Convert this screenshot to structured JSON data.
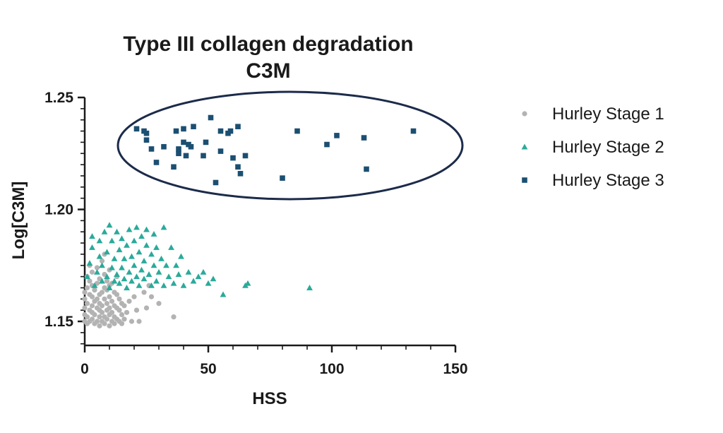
{
  "chart_data": {
    "type": "scatter",
    "title": "Type III collagen degradation",
    "subtitle": "C3M",
    "xlabel": "HSS",
    "ylabel": "Log[C3M]",
    "xlim": [
      0,
      150
    ],
    "ylim": [
      1.14,
      1.25
    ],
    "xticks": [
      0,
      50,
      100,
      150
    ],
    "xtick_labels": [
      "0",
      "50",
      "100",
      "150"
    ],
    "yticks": [
      1.15,
      1.2,
      1.25
    ],
    "ytick_labels": [
      "1.15",
      "1.20",
      "1.25"
    ],
    "grid": false,
    "legend_position": "right",
    "annotation": "ellipse around Hurley Stage 3 points",
    "series": [
      {
        "name": "Hurley Stage 1",
        "marker": "circle",
        "color": "#b3b3b3",
        "points": [
          [
            0,
            1.15
          ],
          [
            0,
            1.153
          ],
          [
            0,
            1.156
          ],
          [
            0,
            1.16
          ],
          [
            0,
            1.163
          ],
          [
            1,
            1.149
          ],
          [
            1,
            1.152
          ],
          [
            1,
            1.158
          ],
          [
            1,
            1.165
          ],
          [
            1,
            1.17
          ],
          [
            2,
            1.15
          ],
          [
            2,
            1.155
          ],
          [
            2,
            1.162
          ],
          [
            2,
            1.168
          ],
          [
            2,
            1.175
          ],
          [
            3,
            1.151
          ],
          [
            3,
            1.154
          ],
          [
            3,
            1.157
          ],
          [
            3,
            1.161
          ],
          [
            3,
            1.166
          ],
          [
            3,
            1.172
          ],
          [
            4,
            1.149
          ],
          [
            4,
            1.153
          ],
          [
            4,
            1.159
          ],
          [
            4,
            1.164
          ],
          [
            5,
            1.15
          ],
          [
            5,
            1.156
          ],
          [
            5,
            1.16
          ],
          [
            5,
            1.167
          ],
          [
            5,
            1.174
          ],
          [
            6,
            1.148
          ],
          [
            6,
            1.152
          ],
          [
            6,
            1.155
          ],
          [
            6,
            1.158
          ],
          [
            6,
            1.162
          ],
          [
            6,
            1.169
          ],
          [
            7,
            1.15
          ],
          [
            7,
            1.154
          ],
          [
            7,
            1.157
          ],
          [
            7,
            1.163
          ],
          [
            7,
            1.177
          ],
          [
            8,
            1.149
          ],
          [
            8,
            1.152
          ],
          [
            8,
            1.16
          ],
          [
            8,
            1.165
          ],
          [
            8,
            1.171
          ],
          [
            8,
            1.18
          ],
          [
            9,
            1.151
          ],
          [
            9,
            1.155
          ],
          [
            9,
            1.158
          ],
          [
            9,
            1.164
          ],
          [
            9,
            1.168
          ],
          [
            10,
            1.148
          ],
          [
            10,
            1.153
          ],
          [
            10,
            1.156
          ],
          [
            10,
            1.161
          ],
          [
            10,
            1.166
          ],
          [
            10,
            1.173
          ],
          [
            11,
            1.15
          ],
          [
            11,
            1.154
          ],
          [
            11,
            1.159
          ],
          [
            11,
            1.167
          ],
          [
            12,
            1.149
          ],
          [
            12,
            1.152
          ],
          [
            12,
            1.157
          ],
          [
            12,
            1.163
          ],
          [
            13,
            1.151
          ],
          [
            13,
            1.156
          ],
          [
            13,
            1.162
          ],
          [
            13,
            1.17
          ],
          [
            14,
            1.15
          ],
          [
            14,
            1.155
          ],
          [
            14,
            1.16
          ],
          [
            15,
            1.149
          ],
          [
            15,
            1.153
          ],
          [
            15,
            1.158
          ],
          [
            16,
            1.151
          ],
          [
            16,
            1.157
          ],
          [
            17,
            1.154
          ],
          [
            18,
            1.159
          ],
          [
            19,
            1.15
          ],
          [
            20,
            1.161
          ],
          [
            21,
            1.155
          ],
          [
            22,
            1.15
          ],
          [
            24,
            1.163
          ],
          [
            25,
            1.156
          ],
          [
            27,
            1.161
          ],
          [
            30,
            1.158
          ],
          [
            36,
            1.152
          ],
          [
            26,
            1.166
          ]
        ]
      },
      {
        "name": "Hurley Stage 2",
        "marker": "triangle",
        "color": "#2aaa9a",
        "points": [
          [
            1,
            1.17
          ],
          [
            2,
            1.176
          ],
          [
            3,
            1.183
          ],
          [
            3,
            1.188
          ],
          [
            4,
            1.166
          ],
          [
            5,
            1.172
          ],
          [
            6,
            1.179
          ],
          [
            6,
            1.186
          ],
          [
            7,
            1.168
          ],
          [
            7,
            1.175
          ],
          [
            8,
            1.19
          ],
          [
            9,
            1.17
          ],
          [
            9,
            1.181
          ],
          [
            10,
            1.193
          ],
          [
            10,
            1.165
          ],
          [
            11,
            1.174
          ],
          [
            11,
            1.186
          ],
          [
            12,
            1.168
          ],
          [
            12,
            1.178
          ],
          [
            13,
            1.171
          ],
          [
            13,
            1.19
          ],
          [
            14,
            1.167
          ],
          [
            14,
            1.182
          ],
          [
            15,
            1.174
          ],
          [
            15,
            1.187
          ],
          [
            16,
            1.169
          ],
          [
            16,
            1.178
          ],
          [
            17,
            1.165
          ],
          [
            17,
            1.184
          ],
          [
            18,
            1.172
          ],
          [
            18,
            1.191
          ],
          [
            19,
            1.168
          ],
          [
            19,
            1.179
          ],
          [
            20,
            1.175
          ],
          [
            20,
            1.186
          ],
          [
            21,
            1.17
          ],
          [
            21,
            1.192
          ],
          [
            22,
            1.166
          ],
          [
            22,
            1.181
          ],
          [
            23,
            1.173
          ],
          [
            23,
            1.188
          ],
          [
            24,
            1.169
          ],
          [
            24,
            1.177
          ],
          [
            25,
            1.184
          ],
          [
            25,
            1.191
          ],
          [
            26,
            1.171
          ],
          [
            27,
            1.166
          ],
          [
            27,
            1.18
          ],
          [
            28,
            1.175
          ],
          [
            28,
            1.189
          ],
          [
            29,
            1.168
          ],
          [
            29,
            1.183
          ],
          [
            30,
            1.172
          ],
          [
            31,
            1.178
          ],
          [
            32,
            1.166
          ],
          [
            32,
            1.192
          ],
          [
            33,
            1.175
          ],
          [
            34,
            1.17
          ],
          [
            35,
            1.183
          ],
          [
            36,
            1.167
          ],
          [
            37,
            1.175
          ],
          [
            38,
            1.171
          ],
          [
            39,
            1.179
          ],
          [
            40,
            1.166
          ],
          [
            42,
            1.172
          ],
          [
            44,
            1.168
          ],
          [
            46,
            1.17
          ],
          [
            48,
            1.172
          ],
          [
            50,
            1.167
          ],
          [
            52,
            1.169
          ],
          [
            56,
            1.162
          ],
          [
            65,
            1.166
          ],
          [
            66,
            1.167
          ],
          [
            91,
            1.165
          ]
        ]
      },
      {
        "name": "Hurley Stage 3",
        "marker": "square",
        "color": "#1b4f72",
        "points": [
          [
            21,
            1.236
          ],
          [
            24,
            1.235
          ],
          [
            25,
            1.234
          ],
          [
            25,
            1.231
          ],
          [
            27,
            1.227
          ],
          [
            29,
            1.221
          ],
          [
            32,
            1.228
          ],
          [
            36,
            1.219
          ],
          [
            37,
            1.235
          ],
          [
            38,
            1.225
          ],
          [
            38,
            1.227
          ],
          [
            40,
            1.236
          ],
          [
            40,
            1.23
          ],
          [
            41,
            1.224
          ],
          [
            42,
            1.229
          ],
          [
            43,
            1.228
          ],
          [
            44,
            1.237
          ],
          [
            48,
            1.224
          ],
          [
            49,
            1.23
          ],
          [
            51,
            1.241
          ],
          [
            53,
            1.212
          ],
          [
            55,
            1.235
          ],
          [
            55,
            1.226
          ],
          [
            58,
            1.234
          ],
          [
            59,
            1.235
          ],
          [
            60,
            1.223
          ],
          [
            62,
            1.219
          ],
          [
            62,
            1.237
          ],
          [
            63,
            1.216
          ],
          [
            65,
            1.224
          ],
          [
            80,
            1.214
          ],
          [
            86,
            1.235
          ],
          [
            98,
            1.229
          ],
          [
            102,
            1.233
          ],
          [
            113,
            1.232
          ],
          [
            114,
            1.218
          ],
          [
            133,
            1.235
          ]
        ]
      }
    ]
  }
}
